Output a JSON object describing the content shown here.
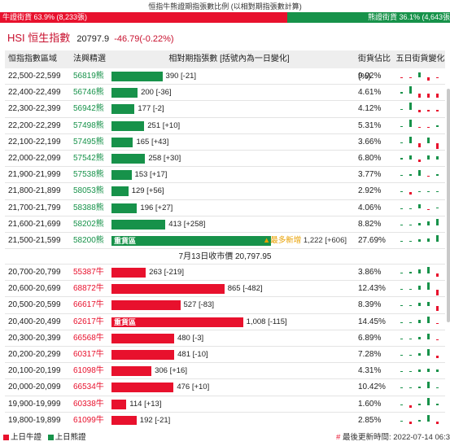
{
  "title": "恒指牛熊證期指張數比例 (以相對期指張數計算)",
  "ratio": {
    "bull_label": "牛證街貨 63.9% (8,233張)",
    "bear_label": "熊證街貨 36.1% (4,643張",
    "bull_pct": 63.9,
    "bull_color": "#e8112d",
    "bear_color": "#17924a"
  },
  "index": {
    "name": "HSI 恒生指數",
    "price": "20797.9",
    "change": "-46.79(-0.22%)"
  },
  "table": {
    "headers": [
      "恒指指數區域",
      "法興精選",
      "相對期指張數 [括號內為一日變化]",
      "街貨佔比(%)",
      "五日街貨變化"
    ],
    "bear_rows": [
      {
        "range": "22,500-22,599",
        "code": "56819熊",
        "value": 390,
        "label": "390 [-21]",
        "pct": "9.92%",
        "spark": [
          -0.1,
          -0.15,
          0.7,
          -0.4,
          -0.1
        ]
      },
      {
        "range": "22,400-22,499",
        "code": "56746熊",
        "value": 200,
        "label": "200 [-36]",
        "pct": "4.61%",
        "spark": [
          0.2,
          1.0,
          -0.5,
          -0.5,
          -0.5
        ]
      },
      {
        "range": "22,300-22,399",
        "code": "56942熊",
        "value": 177,
        "label": "177 [-2]",
        "pct": "4.12%",
        "spark": [
          0.15,
          1.0,
          -0.3,
          -0.15,
          -0.15
        ]
      },
      {
        "range": "22,200-22,299",
        "code": "57498熊",
        "value": 251,
        "label": "251 [+10]",
        "pct": "5.31%",
        "spark": [
          0.1,
          1.0,
          -0.1,
          -0.1,
          0.2
        ]
      },
      {
        "range": "22,100-22,199",
        "code": "57495熊",
        "value": 165,
        "label": "165 [+43]",
        "pct": "3.66%",
        "spark": [
          0.1,
          0.9,
          -0.6,
          0.8,
          -0.8
        ]
      },
      {
        "range": "22,000-22,099",
        "code": "57542熊",
        "value": 258,
        "label": "258 [+30]",
        "pct": "6.80%",
        "spark": [
          0.2,
          0.6,
          -0.3,
          0.5,
          0.4
        ]
      },
      {
        "range": "21,900-21,999",
        "code": "57538熊",
        "value": 153,
        "label": "153 [+17]",
        "pct": "3.77%",
        "spark": [
          0.1,
          0.2,
          0.8,
          -0.1,
          0.2
        ]
      },
      {
        "range": "21,800-21,899",
        "code": "58053熊",
        "value": 129,
        "label": "129 [+56]",
        "pct": "2.92%",
        "spark": [
          0.1,
          -0.3,
          0.15,
          0.1,
          0.1
        ]
      },
      {
        "range": "21,700-21,799",
        "code": "58388熊",
        "value": 196,
        "label": "196 [+27]",
        "pct": "4.06%",
        "spark": [
          0.1,
          0.1,
          0.6,
          -0.2,
          0.2
        ]
      },
      {
        "range": "21,600-21,699",
        "code": "58202熊",
        "value": 413,
        "label": "413 [+258]",
        "pct": "8.82%",
        "spark": [
          0.1,
          0.1,
          0.3,
          0.5,
          0.9
        ]
      },
      {
        "range": "21,500-21,599",
        "code": "58200熊",
        "value": 1222,
        "label": "1,222 [+606]",
        "pct": "27.69%",
        "spark": [
          0.1,
          0.1,
          0.3,
          0.4,
          0.9
        ],
        "heavy": "重貨區",
        "newhigh": "最多新增"
      }
    ],
    "separator": "7月13日收市價 20,797.95",
    "bull_rows": [
      {
        "range": "20,700-20,799",
        "code": "55387牛",
        "value": 263,
        "label": "263 [-219]",
        "pct": "3.86%",
        "spark": [
          0.1,
          0.2,
          0.6,
          0.9,
          -0.4
        ]
      },
      {
        "range": "20,600-20,699",
        "code": "68872牛",
        "value": 865,
        "label": "865 [-482]",
        "pct": "12.43%",
        "spark": [
          0.1,
          0.1,
          0.6,
          1.0,
          -0.7
        ]
      },
      {
        "range": "20,500-20,599",
        "code": "66617牛",
        "value": 527,
        "label": "527 [-83]",
        "pct": "8.39%",
        "spark": [
          0.1,
          0.1,
          0.5,
          0.6,
          -0.6
        ]
      },
      {
        "range": "20,400-20,499",
        "code": "62617牛",
        "value": 1008,
        "label": "1,008 [-115]",
        "pct": "14.45%",
        "spark": [
          0.1,
          0.1,
          0.4,
          0.9,
          -0.2
        ],
        "heavy": "重貨區"
      },
      {
        "range": "20,300-20,399",
        "code": "66568牛",
        "value": 480,
        "label": "480 [-3]",
        "pct": "6.89%",
        "spark": [
          0.1,
          0.1,
          0.3,
          0.8,
          -0.1
        ]
      },
      {
        "range": "20,200-20,299",
        "code": "60317牛",
        "value": 481,
        "label": "481 [-10]",
        "pct": "7.28%",
        "spark": [
          0.1,
          0.1,
          0.3,
          0.9,
          -0.3
        ]
      },
      {
        "range": "20,100-20,199",
        "code": "61098牛",
        "value": 306,
        "label": "306 [+16]",
        "pct": "4.31%",
        "spark": [
          0.1,
          0.1,
          0.4,
          0.5,
          0.4
        ]
      },
      {
        "range": "20,000-20,099",
        "code": "66534牛",
        "value": 476,
        "label": "476 [+10]",
        "pct": "10.42%",
        "spark": [
          0.1,
          0.1,
          0.3,
          0.9,
          0.2
        ]
      },
      {
        "range": "19,900-19,999",
        "code": "60338牛",
        "value": 114,
        "label": "114 [+13]",
        "pct": "1.60%",
        "spark": [
          0.1,
          -0.4,
          0.2,
          0.9,
          0.2
        ]
      },
      {
        "range": "19,800-19,899",
        "code": "61099牛",
        "value": 192,
        "label": "192 [-21]",
        "pct": "2.85%",
        "spark": [
          0.1,
          -0.4,
          0.2,
          0.9,
          -0.4
        ]
      }
    ]
  },
  "legend": {
    "bull": "上日牛證",
    "bear": "上日熊證"
  },
  "updated": "最後更新時間: 2022-07-14 06:3",
  "updated_mark": "#"
}
